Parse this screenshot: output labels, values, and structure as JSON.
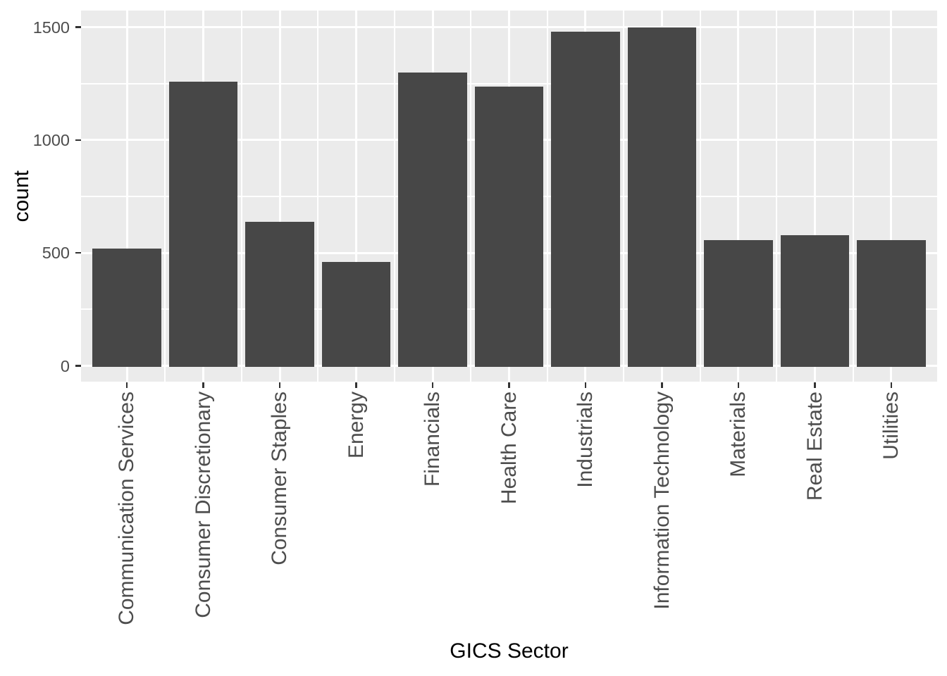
{
  "chart_data": {
    "type": "bar",
    "title": "",
    "xlabel": "GICS Sector",
    "ylabel": "count",
    "categories": [
      "Communication Services",
      "Consumer Discretionary",
      "Consumer Staples",
      "Energy",
      "Financials",
      "Health Care",
      "Industrials",
      "Information Technology",
      "Materials",
      "Real Estate",
      "Utilities"
    ],
    "values": [
      520,
      1260,
      637,
      459,
      1300,
      1238,
      1480,
      1498,
      558,
      579,
      558
    ],
    "yticks": [
      0,
      500,
      1000,
      1500
    ],
    "y_minor_ticks": [
      250,
      750,
      1250
    ],
    "ylim": [
      0,
      1575
    ],
    "legend_position": "none",
    "grid": "white major and minor gridlines on grey panel",
    "x_label_rotation_degrees": -90,
    "colors": {
      "bar_fill": "#474747",
      "panel_background": "#EBEBEB",
      "gridline": "#FFFFFF",
      "tick_label": "#4D4D4D",
      "tick_mark": "#333333",
      "axis_title": "#000000",
      "figure_background": "#FFFFFF"
    }
  }
}
